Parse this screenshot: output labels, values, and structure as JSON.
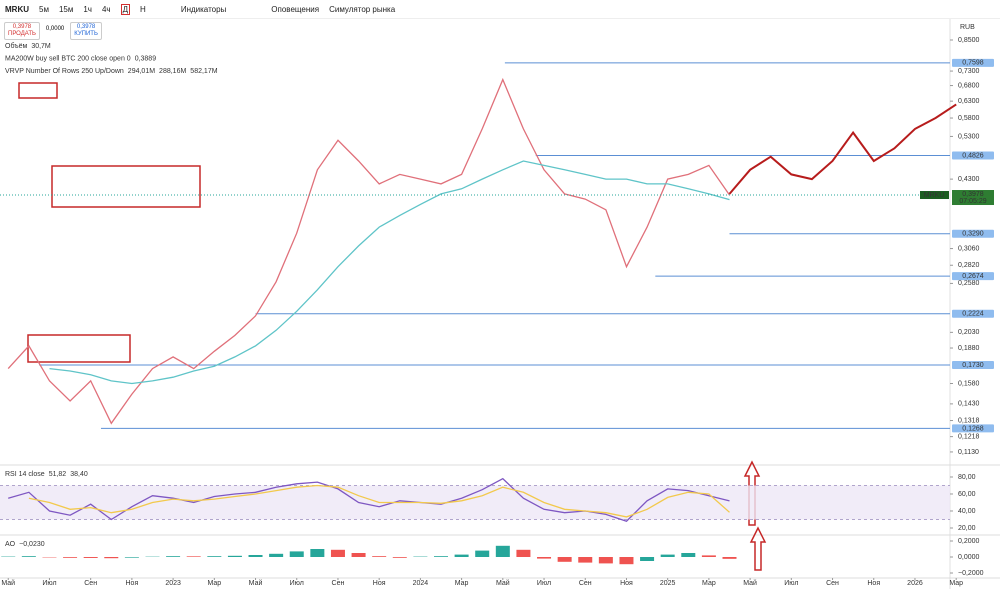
{
  "toolbar": {
    "symbol": "MRKU",
    "intervals": [
      "5м",
      "15м",
      "1ч",
      "4ч",
      "Д",
      "Н"
    ],
    "indicators": "Индикаторы",
    "alerts": "Оповещения",
    "simulator": "Симулятор рынка"
  },
  "trade": {
    "sell_price": "0,3978",
    "sell": "ПРОДАТЬ",
    "spread": "0,0000",
    "buy_price": "0,3978",
    "buy": "КУПИТЬ"
  },
  "legend": [
    {
      "name": "Объём",
      "values": [
        "30,7M"
      ]
    },
    {
      "name": "MA200W buy sell BTC 200 close open 0",
      "values": [
        "0,3889"
      ]
    },
    {
      "name": "VRVP Number Of Rows 250 Up/Down",
      "values": [
        "294,01M",
        "288,16M",
        "582,17M"
      ]
    }
  ],
  "currency": "RUB",
  "chart_data": [
    {
      "type": "line",
      "log_scale": true,
      "xlim": [
        -0.4,
        45.7
      ],
      "ylim": [
        0.106,
        0.9375
      ],
      "x": [
        0,
        1,
        2,
        3,
        4,
        5,
        6,
        7,
        8,
        9,
        10,
        11,
        12,
        13,
        14,
        15,
        16,
        17,
        18,
        19,
        20,
        21,
        22,
        23,
        24,
        25,
        26,
        27,
        28,
        29,
        30,
        31,
        32,
        33,
        34,
        35,
        36,
        37,
        38,
        39,
        40,
        41,
        42,
        43,
        44,
        45,
        46
      ],
      "series": [
        {
          "name": "MRKU",
          "color": "#e0707a",
          "values": [
            0.17,
            0.19,
            0.16,
            0.145,
            0.16,
            0.13,
            0.15,
            0.17,
            0.18,
            0.17,
            0.185,
            0.2,
            0.22,
            0.26,
            0.33,
            0.45,
            0.52,
            0.47,
            0.42,
            0.44,
            0.43,
            0.42,
            0.44,
            0.55,
            0.7,
            0.55,
            0.45,
            0.4,
            0.39,
            0.37,
            0.28,
            0.34,
            0.43,
            0.44,
            0.46,
            0.3978,
            null,
            null,
            null,
            null,
            null,
            null,
            null,
            null,
            null,
            null,
            null
          ]
        },
        {
          "name": "MA200W",
          "color": "#5fc4c8",
          "values": [
            null,
            null,
            0.17,
            0.168,
            0.165,
            0.16,
            0.158,
            0.16,
            0.163,
            0.168,
            0.172,
            0.18,
            0.19,
            0.205,
            0.225,
            0.25,
            0.28,
            0.31,
            0.34,
            0.36,
            0.38,
            0.4,
            0.41,
            0.43,
            0.45,
            0.47,
            0.46,
            0.45,
            0.44,
            0.43,
            0.43,
            0.42,
            0.42,
            0.41,
            0.4,
            0.3889,
            null,
            null,
            null,
            null,
            null,
            null,
            null,
            null,
            null,
            null,
            null
          ]
        },
        {
          "name": "forecast",
          "color": "#b71c1c",
          "values": [
            null,
            null,
            null,
            null,
            null,
            null,
            null,
            null,
            null,
            null,
            null,
            null,
            null,
            null,
            null,
            null,
            null,
            null,
            null,
            null,
            null,
            null,
            null,
            null,
            null,
            null,
            null,
            null,
            null,
            null,
            null,
            null,
            null,
            null,
            null,
            0.4,
            0.45,
            0.48,
            0.44,
            0.43,
            0.47,
            0.54,
            0.47,
            0.5,
            0.55,
            0.58,
            0.62
          ]
        }
      ],
      "yticks": [
        {
          "value": 0.85,
          "label": "0,8500"
        },
        {
          "value": 0.73,
          "label": "0,7300"
        },
        {
          "value": 0.68,
          "label": "0,6800"
        },
        {
          "value": 0.63,
          "label": "0,6300"
        },
        {
          "value": 0.58,
          "label": "0,5800"
        },
        {
          "value": 0.53,
          "label": "0,5300"
        },
        {
          "value": 0.43,
          "label": "0,4300"
        },
        {
          "value": 0.306,
          "label": "0,3060"
        },
        {
          "value": 0.282,
          "label": "0,2820"
        },
        {
          "value": 0.258,
          "label": "0,2580"
        },
        {
          "value": 0.203,
          "label": "0,2030"
        },
        {
          "value": 0.188,
          "label": "0,1880"
        },
        {
          "value": 0.158,
          "label": "0,1580"
        },
        {
          "value": 0.143,
          "label": "0,1430"
        },
        {
          "value": 0.1318,
          "label": "0,1318"
        },
        {
          "value": 0.1218,
          "label": "0,1218"
        },
        {
          "value": 0.113,
          "label": "0,1130"
        }
      ],
      "xticks": [
        {
          "value": 0,
          "label": "Май"
        },
        {
          "value": 2,
          "label": "Июл"
        },
        {
          "value": 4,
          "label": "Сен"
        },
        {
          "value": 6,
          "label": "Ноя"
        },
        {
          "value": 8,
          "label": "2023"
        },
        {
          "value": 10,
          "label": "Мар"
        },
        {
          "value": 12,
          "label": "Май"
        },
        {
          "value": 14,
          "label": "Июл"
        },
        {
          "value": 16,
          "label": "Сен"
        },
        {
          "value": 18,
          "label": "Ноя"
        },
        {
          "value": 20,
          "label": "2024"
        },
        {
          "value": 22,
          "label": "Мар"
        },
        {
          "value": 24,
          "label": "Май"
        },
        {
          "value": 26,
          "label": "Июл"
        },
        {
          "value": 28,
          "label": "Сен"
        },
        {
          "value": 30,
          "label": "Ноя"
        },
        {
          "value": 32,
          "label": "2025"
        },
        {
          "value": 34,
          "label": "Мар"
        },
        {
          "value": 36,
          "label": "Май"
        },
        {
          "value": 38,
          "label": "Июл"
        },
        {
          "value": 40,
          "label": "Сен"
        },
        {
          "value": 42,
          "label": "Ноя"
        },
        {
          "value": 44,
          "label": "2026"
        },
        {
          "value": 46,
          "label": "Мар"
        }
      ],
      "levels": [
        {
          "value": 0.7598,
          "label": "0,7598",
          "start": 24.1
        },
        {
          "value": 0.4826,
          "label": "0,4826",
          "start": 25.6
        },
        {
          "value": 0.329,
          "label": "0,3290",
          "start": 35
        },
        {
          "value": 0.2674,
          "label": "0,2674",
          "start": 31.4
        },
        {
          "value": 0.2224,
          "label": "0,2224",
          "start": 12
        },
        {
          "value": 0.173,
          "label": "0,1730",
          "start": 1.5
        },
        {
          "value": 0.1268,
          "label": "0,1268",
          "start": 4.5
        }
      ],
      "price_tag": {
        "symbol": "MRKU",
        "value": 0.3978,
        "label": "0,3978",
        "countdown": "07:05:29"
      }
    },
    {
      "type": "line",
      "title": "RSI 14 close",
      "value_labels": [
        "51,82",
        "38,40"
      ],
      "xlim": [
        -0.4,
        45.7
      ],
      "ylim": [
        14.1,
        94.1
      ],
      "band": [
        30,
        70
      ],
      "x": [
        0,
        1,
        2,
        3,
        4,
        5,
        6,
        7,
        8,
        9,
        10,
        11,
        12,
        13,
        14,
        15,
        16,
        17,
        18,
        19,
        20,
        21,
        22,
        23,
        24,
        25,
        26,
        27,
        28,
        29,
        30,
        31,
        32,
        33,
        34,
        35
      ],
      "series": [
        {
          "name": "RSI",
          "color": "#7e57c2",
          "values": [
            55,
            62,
            40,
            35,
            48,
            30,
            45,
            58,
            55,
            50,
            57,
            60,
            62,
            68,
            72,
            74,
            66,
            50,
            45,
            52,
            50,
            48,
            55,
            65,
            78,
            55,
            42,
            38,
            40,
            36,
            28,
            52,
            66,
            64,
            58,
            51.82
          ]
        },
        {
          "name": "RSI MA",
          "color": "#f2c94c",
          "values": [
            null,
            55,
            50,
            42,
            44,
            38,
            42,
            50,
            54,
            52,
            54,
            57,
            60,
            64,
            68,
            70,
            68,
            58,
            50,
            50,
            50,
            49,
            52,
            58,
            68,
            62,
            50,
            42,
            40,
            38,
            33,
            42,
            56,
            62,
            60,
            38.4
          ]
        }
      ],
      "yticks": [
        {
          "value": 80,
          "label": "80,00"
        },
        {
          "value": 60,
          "label": "60,00"
        },
        {
          "value": 40,
          "label": "40,00"
        },
        {
          "value": 20,
          "label": "20,00"
        }
      ]
    },
    {
      "type": "bar",
      "title": "AO",
      "value_labels": [
        "−0,0230"
      ],
      "xlim": [
        -0.4,
        45.7
      ],
      "ylim": [
        -0.2625,
        0.275
      ],
      "x": [
        0,
        1,
        2,
        3,
        4,
        5,
        6,
        7,
        8,
        9,
        10,
        11,
        12,
        13,
        14,
        15,
        16,
        17,
        18,
        19,
        20,
        21,
        22,
        23,
        24,
        25,
        26,
        27,
        28,
        29,
        30,
        31,
        32,
        33,
        34,
        35
      ],
      "values": [
        0.005,
        0.01,
        -0.005,
        -0.01,
        -0.012,
        -0.015,
        -0.008,
        0.004,
        0.01,
        0.008,
        0.01,
        0.015,
        0.025,
        0.04,
        0.07,
        0.1,
        0.09,
        0.05,
        0.01,
        -0.01,
        0.005,
        0.01,
        0.03,
        0.08,
        0.14,
        0.09,
        -0.02,
        -0.06,
        -0.07,
        -0.08,
        -0.09,
        -0.05,
        0.03,
        0.05,
        0.02,
        -0.023
      ],
      "yticks": [
        {
          "value": 0.2,
          "label": "0,2000"
        },
        {
          "value": 0,
          "label": "0,0000"
        },
        {
          "value": -0.2,
          "label": "−0,2000"
        }
      ]
    }
  ]
}
